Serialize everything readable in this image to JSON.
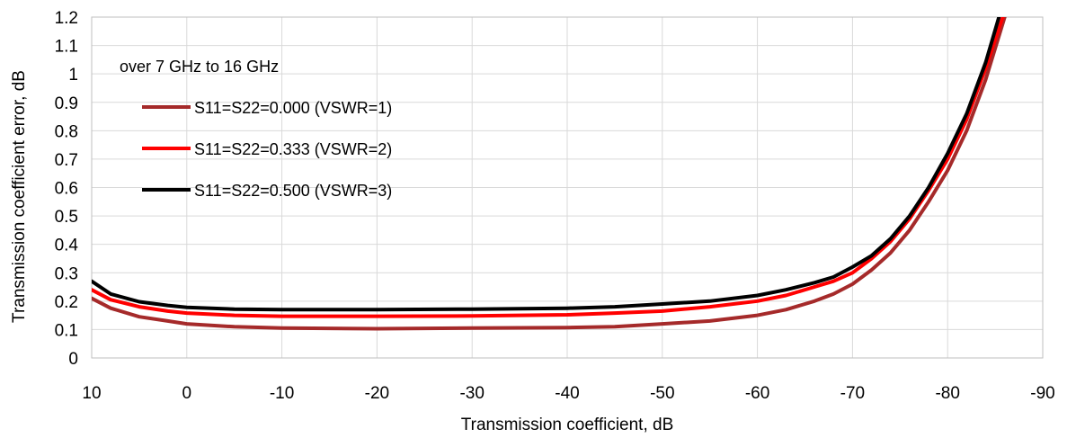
{
  "chart_data": {
    "type": "line",
    "xlabel": "Transmission coefficient, dB",
    "ylabel": "Transmission coefficient error, dB",
    "xlim": [
      10,
      -90
    ],
    "ylim": [
      0,
      1.2
    ],
    "x_ticks": [
      "10",
      "0",
      "-10",
      "-20",
      "-30",
      "-40",
      "-50",
      "-60",
      "-70",
      "-80",
      "-90"
    ],
    "y_ticks": [
      "0",
      "0.1",
      "0.2",
      "0.3",
      "0.4",
      "0.5",
      "0.6",
      "0.7",
      "0.8",
      "0.9",
      "1",
      "1.1",
      "1.2"
    ],
    "grid": true,
    "legend_title": "over 7 GHz to 16 GHz",
    "legend_position": "top-left",
    "series": [
      {
        "name": "S11=S22=0.000 (VSWR=1)",
        "color": "#a52a2a",
        "points": [
          [
            10,
            0.21
          ],
          [
            8,
            0.175
          ],
          [
            5,
            0.145
          ],
          [
            2,
            0.13
          ],
          [
            0,
            0.12
          ],
          [
            -5,
            0.11
          ],
          [
            -10,
            0.105
          ],
          [
            -20,
            0.103
          ],
          [
            -30,
            0.105
          ],
          [
            -40,
            0.107
          ],
          [
            -45,
            0.11
          ],
          [
            -50,
            0.12
          ],
          [
            -55,
            0.13
          ],
          [
            -60,
            0.15
          ],
          [
            -63,
            0.17
          ],
          [
            -66,
            0.2
          ],
          [
            -68,
            0.225
          ],
          [
            -70,
            0.26
          ],
          [
            -72,
            0.31
          ],
          [
            -74,
            0.37
          ],
          [
            -76,
            0.45
          ],
          [
            -78,
            0.55
          ],
          [
            -80,
            0.66
          ],
          [
            -82,
            0.8
          ],
          [
            -84,
            0.98
          ],
          [
            -86,
            1.2
          ]
        ]
      },
      {
        "name": "S11=S22=0.333 (VSWR=2)",
        "color": "#ff0000",
        "points": [
          [
            10,
            0.24
          ],
          [
            8,
            0.205
          ],
          [
            5,
            0.18
          ],
          [
            2,
            0.165
          ],
          [
            0,
            0.158
          ],
          [
            -5,
            0.15
          ],
          [
            -10,
            0.147
          ],
          [
            -20,
            0.147
          ],
          [
            -30,
            0.148
          ],
          [
            -40,
            0.152
          ],
          [
            -45,
            0.158
          ],
          [
            -50,
            0.165
          ],
          [
            -55,
            0.18
          ],
          [
            -60,
            0.2
          ],
          [
            -63,
            0.22
          ],
          [
            -66,
            0.25
          ],
          [
            -68,
            0.27
          ],
          [
            -70,
            0.3
          ],
          [
            -72,
            0.35
          ],
          [
            -74,
            0.41
          ],
          [
            -76,
            0.49
          ],
          [
            -78,
            0.59
          ],
          [
            -80,
            0.7
          ],
          [
            -82,
            0.84
          ],
          [
            -84,
            1.02
          ],
          [
            -85.8,
            1.2
          ]
        ]
      },
      {
        "name": "S11=S22=0.500 (VSWR=3)",
        "color": "#000000",
        "points": [
          [
            10,
            0.27
          ],
          [
            8,
            0.225
          ],
          [
            5,
            0.198
          ],
          [
            2,
            0.185
          ],
          [
            0,
            0.178
          ],
          [
            -5,
            0.172
          ],
          [
            -10,
            0.17
          ],
          [
            -20,
            0.17
          ],
          [
            -30,
            0.172
          ],
          [
            -40,
            0.175
          ],
          [
            -45,
            0.18
          ],
          [
            -50,
            0.19
          ],
          [
            -55,
            0.2
          ],
          [
            -60,
            0.22
          ],
          [
            -63,
            0.24
          ],
          [
            -66,
            0.265
          ],
          [
            -68,
            0.285
          ],
          [
            -70,
            0.32
          ],
          [
            -72,
            0.36
          ],
          [
            -74,
            0.42
          ],
          [
            -76,
            0.5
          ],
          [
            -78,
            0.6
          ],
          [
            -80,
            0.72
          ],
          [
            -82,
            0.86
          ],
          [
            -84,
            1.04
          ],
          [
            -85.4,
            1.2
          ]
        ]
      }
    ]
  }
}
